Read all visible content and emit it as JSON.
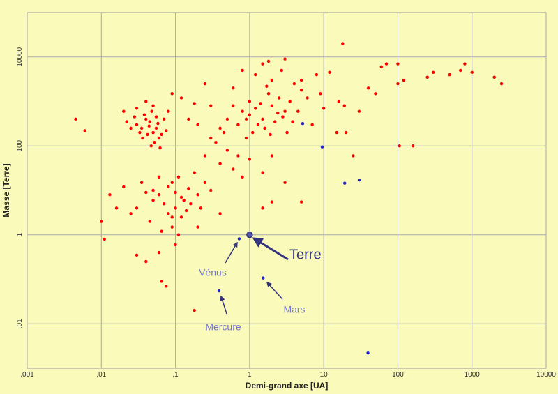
{
  "chart_data": {
    "type": "scatter",
    "x_label": "Demi-grand axe [UA]",
    "y_label": "Masse [Terre]",
    "log_x": true,
    "log_y": true,
    "grid": true,
    "xlim": [
      0.001,
      10000
    ],
    "ylim": [
      0.001,
      100000
    ],
    "xticks": [
      {
        "value": 0.001,
        "label": ",001"
      },
      {
        "value": 0.01,
        "label": ",01"
      },
      {
        "value": 0.1,
        "label": ",1"
      },
      1,
      10,
      100,
      1000,
      10000
    ],
    "yticks": [
      {
        "value": 0.01,
        "label": ",01"
      },
      1,
      100,
      10000
    ],
    "series": [
      {
        "color": "#ff0000",
        "x": [
          0.03,
          0.035,
          0.04,
          0.045,
          0.05,
          0.042,
          0.038,
          0.055,
          0.06,
          0.048,
          0.033,
          0.052,
          0.044,
          0.058,
          0.065,
          0.07,
          0.028,
          0.025,
          0.036,
          0.047,
          0.05,
          0.04,
          0.062,
          0.03,
          0.055,
          0.075,
          0.08,
          0.09,
          0.02,
          0.022,
          0.05,
          0.06,
          0.08,
          0.1,
          0.12,
          0.15,
          0.07,
          0.09,
          0.11,
          0.13,
          0.2,
          0.25,
          0.18,
          0.1,
          0.08,
          0.14,
          0.06,
          0.05,
          0.04,
          0.03,
          0.035,
          0.16,
          0.22,
          0.3,
          0.12,
          0.09,
          0.11,
          0.065,
          0.045,
          0.025,
          0.02,
          0.013,
          0.016,
          1,
          1.2,
          1.5,
          2,
          2.5,
          3,
          1.3,
          0.9,
          1.8,
          2.2,
          3.5,
          4,
          1.1,
          0.8,
          1.6,
          2.8,
          0.7,
          5,
          1.4,
          2,
          1.7,
          3.2,
          0.6,
          1,
          2.4,
          4.5,
          1.9,
          0.5,
          0.4,
          6,
          1.2,
          2.7,
          3.8,
          0.9,
          1.5,
          0.2,
          0.3,
          0.5,
          0.15,
          0.25,
          0.4,
          0.6,
          0.35,
          0.7,
          0.8,
          1,
          1.5,
          2,
          3,
          0.45,
          0.3,
          0.18,
          0.12,
          0.6,
          0.25,
          0.8,
          1.8,
          3,
          5,
          8,
          9,
          7,
          10,
          12,
          16,
          20,
          30,
          18,
          25,
          50,
          60,
          70,
          100,
          100,
          105,
          160,
          250,
          300,
          500,
          700,
          800,
          1000,
          2000,
          2500,
          120,
          40,
          15,
          19,
          0.0045,
          0.006,
          0.01,
          0.011,
          0.03,
          0.04,
          0.06,
          0.065,
          0.075,
          0.18,
          0.1,
          0.2,
          0.09,
          0.4,
          1.5,
          2,
          5
        ],
        "values": [
          300,
          250,
          400,
          350,
          200,
          180,
          500,
          250,
          150,
          600,
          200,
          120,
          280,
          320,
          180,
          400,
          450,
          250,
          150,
          100,
          800,
          1000,
          90,
          700,
          450,
          220,
          600,
          1500,
          600,
          350,
          10,
          8,
          12,
          9,
          7,
          11,
          5,
          15,
          20,
          6,
          8,
          15,
          25,
          4,
          3,
          3.5,
          20,
          6,
          9,
          4,
          15,
          5,
          4,
          10,
          2.5,
          1.5,
          1,
          1.2,
          2,
          3,
          12,
          8,
          4,
          500,
          700,
          400,
          800,
          1200,
          600,
          300,
          400,
          1500,
          350,
          1000,
          2500,
          200,
          600,
          250,
          450,
          300,
          1800,
          900,
          3000,
          2200,
          200,
          800,
          1000,
          550,
          600,
          180,
          400,
          250,
          1200,
          4000,
          5000,
          350,
          150,
          7000,
          300,
          150,
          80,
          400,
          60,
          40,
          30,
          120,
          60,
          20,
          50,
          25,
          60,
          15,
          200,
          800,
          900,
          1200,
          2000,
          2500,
          5000,
          8000,
          9000,
          3000,
          4000,
          1500,
          300,
          700,
          4500,
          1000,
          200,
          600,
          20000,
          60,
          1500,
          6000,
          7000,
          7000,
          2500,
          100,
          100,
          3500,
          4500,
          4000,
          5000,
          7000,
          4500,
          3500,
          2500,
          3000,
          2000,
          200,
          800,
          400,
          220,
          2,
          0.8,
          0.35,
          0.25,
          0.4,
          0.09,
          0.07,
          0.02,
          0.6,
          1.5,
          2.5,
          3,
          4,
          5.5,
          5.5
        ]
      },
      {
        "color": "#2222cc",
        "x": [
          0.387,
          0.723,
          1,
          1.524,
          5.2,
          9.54,
          19.2,
          30.1,
          39.5
        ],
        "values": [
          0.055,
          0.815,
          1,
          0.107,
          318,
          95,
          14.5,
          17.1,
          0.0022
        ]
      }
    ],
    "annotations": [
      "Terre",
      "Vénus",
      "Mars",
      "Mercure"
    ]
  }
}
